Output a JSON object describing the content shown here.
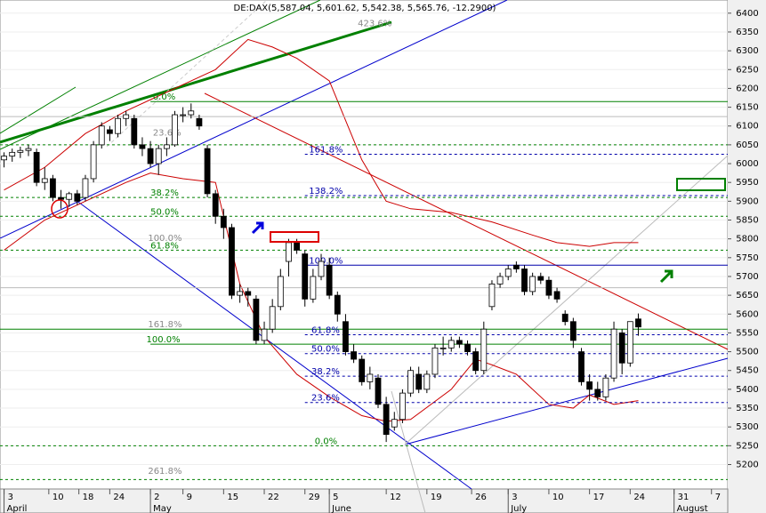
{
  "chart_data": {
    "type": "candlestick",
    "title": "DE:DAX(5,587.04, 5,601.62, 5,542.38, 5,565.76, -12.2900)",
    "ylim": [
      5135,
      6435
    ],
    "yticks": [
      5200,
      5250,
      5300,
      5350,
      5400,
      5450,
      5500,
      5550,
      5600,
      5650,
      5700,
      5750,
      5800,
      5850,
      5900,
      5950,
      6000,
      6050,
      6100,
      6150,
      6200,
      6250,
      6300,
      6350,
      6400
    ],
    "xlim": [
      -0.5,
      89
    ],
    "xticks": [
      {
        "value": 0,
        "label": "3"
      },
      {
        "value": 5.5,
        "label": "10"
      },
      {
        "value": 9.2,
        "label": "18"
      },
      {
        "value": 13,
        "label": "24"
      },
      {
        "value": 18,
        "label": "2"
      },
      {
        "value": 22,
        "label": "9"
      },
      {
        "value": 27,
        "label": "15"
      },
      {
        "value": 32,
        "label": "22"
      },
      {
        "value": 37,
        "label": "29"
      },
      {
        "value": 40,
        "label": "5"
      },
      {
        "value": 47,
        "label": "12"
      },
      {
        "value": 52,
        "label": "19"
      },
      {
        "value": 57.5,
        "label": "26"
      },
      {
        "value": 62,
        "label": "3"
      },
      {
        "value": 67,
        "label": "10"
      },
      {
        "value": 72,
        "label": "17"
      },
      {
        "value": 77,
        "label": "24"
      },
      {
        "value": 82.4,
        "label": "31"
      },
      {
        "value": 87,
        "label": "7"
      }
    ],
    "months": [
      {
        "value": 0,
        "label": "April"
      },
      {
        "value": 18,
        "label": "May"
      },
      {
        "value": 40,
        "label": "June"
      },
      {
        "value": 62,
        "label": "July"
      },
      {
        "value": 82.4,
        "label": "August"
      }
    ],
    "up_color": "#ffffff",
    "down_color": "#000000",
    "candles": {
      "open": [
        6010,
        6020,
        6030,
        6035,
        6030,
        5950,
        5960,
        5910,
        5905,
        5920,
        5910,
        5960,
        6050,
        6090,
        6080,
        6120,
        6120,
        6050,
        6040,
        6000,
        6040,
        6050,
        6130,
        6130,
        6120,
        6040,
        5920,
        5860,
        5830,
        5650,
        5660,
        5640,
        5530,
        5560,
        5620,
        5740,
        5790,
        5760,
        5640,
        5700,
        5730,
        5650,
        5580,
        5500,
        5480,
        5420,
        5430,
        5360,
        5300,
        5320,
        5390,
        5440,
        5400,
        5440,
        5510,
        5510,
        5530,
        5520,
        5500,
        5450,
        5620,
        5680,
        5700,
        5730,
        5720,
        5660,
        5700,
        5690,
        5660,
        5600,
        5580,
        5500,
        5420,
        5400,
        5380,
        5430,
        5550,
        5470,
        5587.04
      ],
      "high": [
        6030,
        6040,
        6045,
        6050,
        6040,
        5990,
        5970,
        5930,
        5925,
        5930,
        5970,
        6060,
        6110,
        6100,
        6130,
        6140,
        6130,
        6070,
        6060,
        6050,
        6070,
        6140,
        6150,
        6160,
        6130,
        6050,
        5930,
        5880,
        5840,
        5680,
        5670,
        5650,
        5580,
        5640,
        5720,
        5800,
        5800,
        5770,
        5720,
        5760,
        5750,
        5660,
        5600,
        5520,
        5490,
        5460,
        5440,
        5380,
        5340,
        5400,
        5460,
        5460,
        5450,
        5520,
        5540,
        5540,
        5540,
        5530,
        5510,
        5580,
        5690,
        5710,
        5730,
        5740,
        5730,
        5710,
        5710,
        5700,
        5670,
        5610,
        5590,
        5510,
        5440,
        5420,
        5440,
        5580,
        5560,
        5580,
        5601.62
      ],
      "low": [
        5990,
        6005,
        6015,
        6020,
        5940,
        5930,
        5900,
        5880,
        5885,
        5890,
        5900,
        5950,
        6040,
        6060,
        6070,
        6100,
        6040,
        6020,
        5990,
        5970,
        6020,
        6045,
        6110,
        6120,
        6090,
        5910,
        5840,
        5800,
        5640,
        5630,
        5620,
        5520,
        5520,
        5550,
        5610,
        5700,
        5760,
        5620,
        5630,
        5690,
        5640,
        5580,
        5490,
        5470,
        5410,
        5400,
        5350,
        5260,
        5290,
        5310,
        5380,
        5390,
        5390,
        5430,
        5490,
        5500,
        5510,
        5490,
        5440,
        5440,
        5610,
        5670,
        5690,
        5710,
        5650,
        5650,
        5680,
        5640,
        5630,
        5570,
        5510,
        5410,
        5370,
        5370,
        5370,
        5420,
        5440,
        5460,
        5542.38
      ],
      "close": [
        6020,
        6030,
        6035,
        6040,
        5950,
        5960,
        5910,
        5905,
        5920,
        5900,
        5960,
        6050,
        6100,
        6080,
        6120,
        6130,
        6050,
        6040,
        6000,
        6040,
        6050,
        6130,
        6130,
        6140,
        6100,
        5920,
        5860,
        5830,
        5650,
        5660,
        5650,
        5530,
        5560,
        5620,
        5700,
        5790,
        5770,
        5640,
        5700,
        5740,
        5650,
        5600,
        5500,
        5480,
        5420,
        5440,
        5360,
        5280,
        5320,
        5390,
        5450,
        5400,
        5440,
        5510,
        5510,
        5530,
        5520,
        5500,
        5450,
        5560,
        5680,
        5700,
        5720,
        5720,
        5660,
        5700,
        5690,
        5650,
        5640,
        5580,
        5530,
        5420,
        5400,
        5380,
        5430,
        5560,
        5470,
        5580,
        5565.76
      ]
    },
    "overlays": [
      {
        "color": "#cc0000",
        "x": [
          0,
          5,
          10,
          15,
          18,
          22,
          26,
          30,
          33,
          36,
          40,
          44,
          47,
          50,
          55,
          60,
          65,
          68,
          72,
          75,
          78
        ],
        "values": [
          5930,
          5990,
          6080,
          6140,
          6170,
          6210,
          6250,
          6330,
          6310,
          6280,
          6220,
          6010,
          5900,
          5880,
          5870,
          5845,
          5810,
          5790,
          5780,
          5790,
          5790
        ]
      },
      {
        "color": "#cc0000",
        "x": [
          0,
          5,
          10,
          15,
          18,
          22,
          26,
          29,
          32,
          36,
          40,
          44,
          47,
          50,
          55,
          58,
          60,
          63,
          67,
          70,
          72,
          75,
          78
        ],
        "values": [
          5770,
          5850,
          5900,
          5950,
          5975,
          5960,
          5950,
          5680,
          5540,
          5440,
          5380,
          5330,
          5315,
          5320,
          5400,
          5480,
          5465,
          5440,
          5360,
          5350,
          5385,
          5360,
          5370
        ]
      }
    ],
    "levels": [
      {
        "value": 6165,
        "color": "#008000",
        "dash": false,
        "from": 18,
        "label": "0.0%",
        "at": 18.3
      },
      {
        "value": 6125,
        "color": "#bbbbbb",
        "dash": false,
        "from": -0.5
      },
      {
        "value": 6050,
        "color": "#008000",
        "dash": true,
        "from": -0.5
      },
      {
        "value": 6025,
        "color": "#0000aa",
        "dash": true,
        "from": 37,
        "label": "161.8%",
        "at": 37.5
      },
      {
        "value": 5915,
        "color": "#0000aa",
        "dash": true,
        "from": 37,
        "label": "138.2%",
        "at": 37.5
      },
      {
        "value": 5910,
        "color": "#008000",
        "dash": true,
        "from": -0.5,
        "label": "38.2%",
        "at": 18
      },
      {
        "value": 5860,
        "color": "#008000",
        "dash": true,
        "from": -0.5,
        "label": "50.0%",
        "at": 18
      },
      {
        "value": 5770,
        "color": "#008000",
        "dash": true,
        "from": -0.5,
        "label": "61.8%",
        "at": 18
      },
      {
        "value": 5730,
        "color": "#0000aa",
        "dash": false,
        "from": 37,
        "label": "100.0%",
        "at": 37.5
      },
      {
        "value": 5670,
        "color": "#bbbbbb",
        "dash": false,
        "from": -0.5
      },
      {
        "value": 5560,
        "color": "#008000",
        "dash": false,
        "from": -0.5
      },
      {
        "value": 5545,
        "color": "#0000aa",
        "dash": true,
        "from": 37,
        "label": "61.8%",
        "at": 37.8
      },
      {
        "value": 5520,
        "color": "#008000",
        "dash": false,
        "from": 18,
        "label": "100.0%",
        "at": 17.5
      },
      {
        "value": 5495,
        "color": "#0000aa",
        "dash": true,
        "from": 37,
        "label": "50.0%",
        "at": 37.8
      },
      {
        "value": 5435,
        "color": "#0000aa",
        "dash": true,
        "from": 37,
        "label": "38.2%",
        "at": 37.8
      },
      {
        "value": 5365,
        "color": "#0000aa",
        "dash": true,
        "from": 37,
        "label": "23.6%",
        "at": 37.8
      },
      {
        "value": 5250,
        "color": "#008000",
        "dash": true,
        "from": -0.5,
        "label": "0.0%",
        "at": 38.2
      },
      {
        "value": 5160,
        "color": "#008000",
        "dash": true,
        "from": -0.5
      },
      {
        "value": 6070,
        "color": "#888888",
        "label": "23.6%",
        "at": 18.3
      },
      {
        "value": 5790,
        "color": "#888888",
        "label": "100.0%",
        "at": 17.7
      },
      {
        "value": 5560,
        "color": "#888888",
        "label": "161.8%",
        "at": 17.7
      },
      {
        "value": 5170,
        "color": "#888888",
        "label": "261.8%",
        "at": 17.7
      },
      {
        "value": 6360,
        "color": "#888888",
        "label": "423.6%",
        "at": 43.5
      }
    ]
  }
}
